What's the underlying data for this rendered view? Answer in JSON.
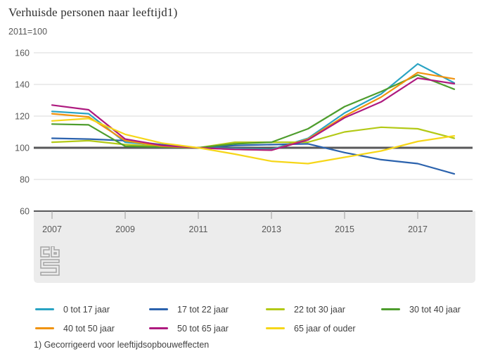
{
  "page": {
    "title": "Verhuisde personen naar leeftijd1)",
    "subtitle": "2011=100",
    "footnote": "1) Gecorrigeerd voor leeftijdsopbouweffecten"
  },
  "chart_data": {
    "type": "line",
    "title": "Verhuisde personen naar leeftijd1)",
    "subtitle": "2011=100",
    "x": [
      2007,
      2008,
      2009,
      2010,
      2011,
      2012,
      2013,
      2014,
      2015,
      2016,
      2017,
      2018
    ],
    "x_axis_tick_labels": [
      2007,
      2009,
      2011,
      2013,
      2015,
      2017
    ],
    "y_axis_tick_labels": [
      60,
      80,
      100,
      120,
      140,
      160
    ],
    "xlim": [
      2006.5,
      2018.5
    ],
    "ylim": [
      60,
      160
    ],
    "baseline_value": 100,
    "grid": true,
    "legend_position": "bottom",
    "series": [
      {
        "name": "0 tot 17 jaar",
        "color": "#29a3c3",
        "values": [
          123,
          121.5,
          103.5,
          101.5,
          100,
          99.5,
          99,
          106,
          122,
          134,
          153,
          141
        ]
      },
      {
        "name": "17 tot 22 jaar",
        "color": "#2b62ad",
        "values": [
          106,
          105.5,
          104.5,
          102,
          100,
          101.5,
          102,
          102.5,
          97,
          92.5,
          90,
          83.5
        ]
      },
      {
        "name": "22 tot 30 jaar",
        "color": "#b3c916",
        "values": [
          103.5,
          104.5,
          102,
          101,
          100,
          103.5,
          103.5,
          103.5,
          110,
          113,
          112,
          106
        ]
      },
      {
        "name": "30 tot 40 jaar",
        "color": "#4e9d2d",
        "values": [
          115,
          114.5,
          101,
          100.5,
          100,
          102.5,
          103.5,
          112,
          126,
          135.5,
          146,
          137
        ]
      },
      {
        "name": "40 tot 50 jaar",
        "color": "#f0930f",
        "values": [
          121.5,
          119.5,
          104.5,
          101,
          100,
          99,
          98.5,
          105.5,
          120,
          132,
          147.5,
          143.5
        ]
      },
      {
        "name": "50 tot 65 jaar",
        "color": "#ae1a7f",
        "values": [
          127,
          124,
          105.5,
          101.5,
          100,
          99,
          98.5,
          105,
          119,
          129,
          144,
          140.5
        ]
      },
      {
        "name": "65 jaar of ouder",
        "color": "#f6d619",
        "values": [
          117,
          118.5,
          108.5,
          103,
          100,
          96,
          91.5,
          90,
          94,
          98,
          104,
          107.5
        ]
      }
    ]
  },
  "colors": {
    "gridline": "#d9d9d9",
    "axis": "#58585a",
    "band": "#ececec",
    "tick": "#9b9b9b",
    "axis_label": "#595959",
    "logo": "#a3a3a3"
  }
}
